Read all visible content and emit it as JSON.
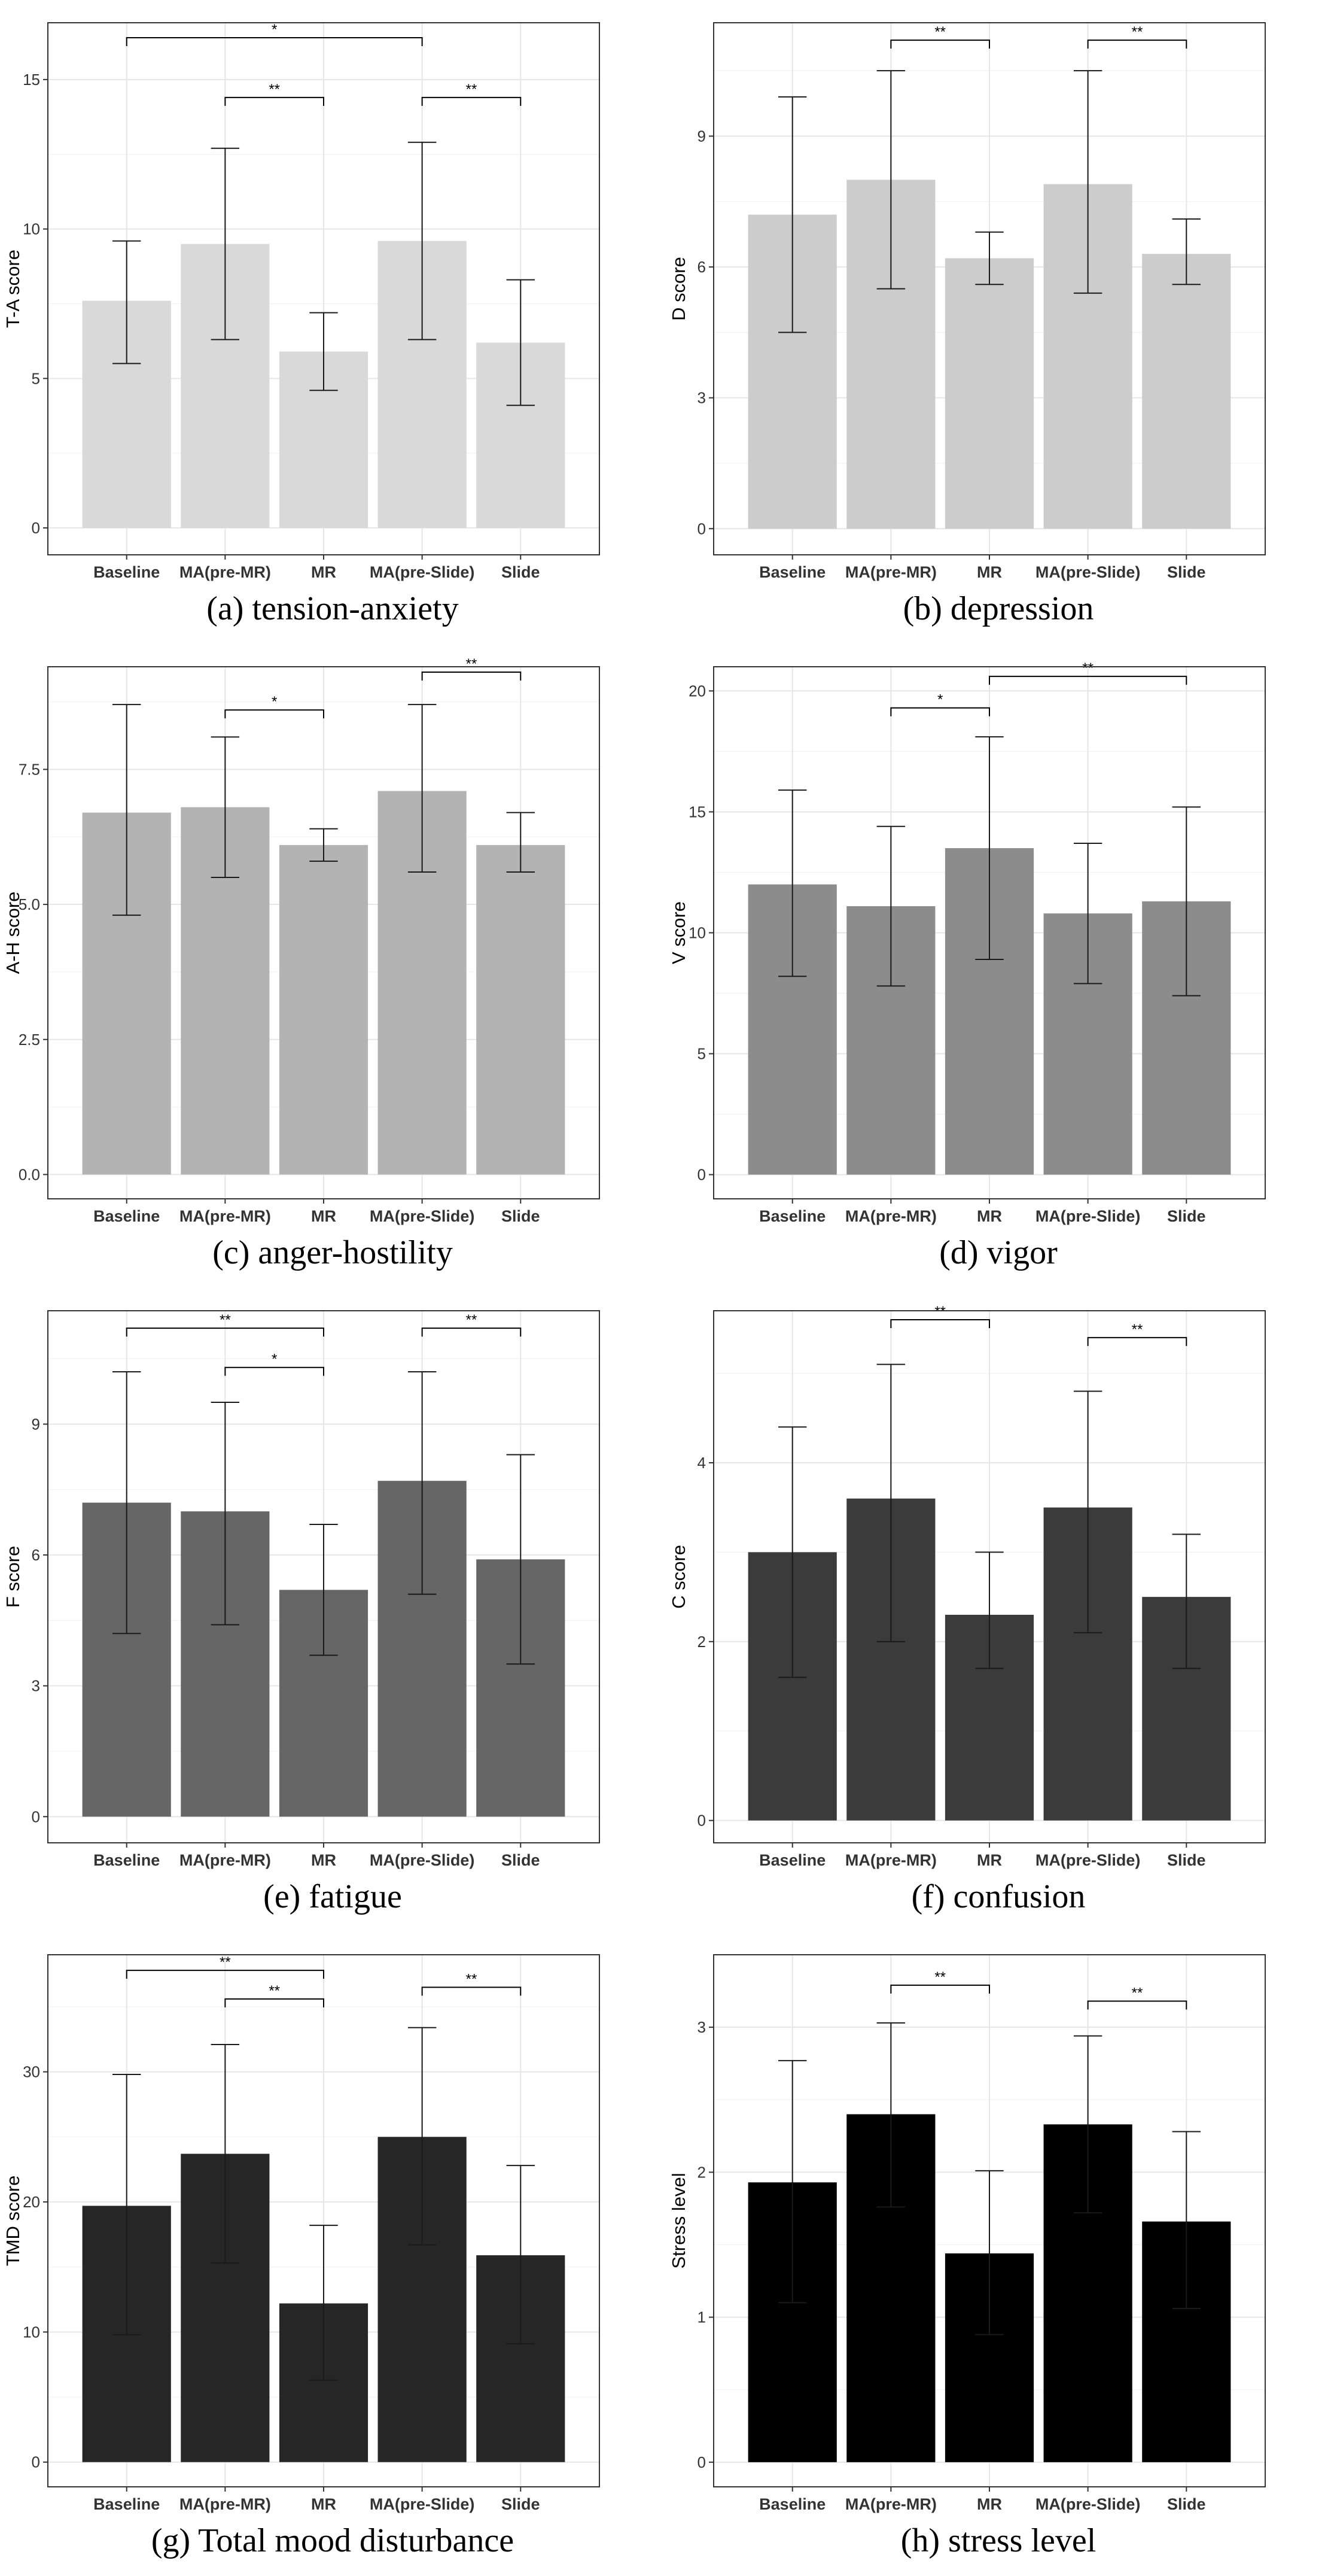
{
  "chart_data": [
    {
      "type": "bar",
      "caption": "(a) tension-anxiety",
      "ylabel": "T-A score",
      "ylim": [
        -0.9,
        16.9
      ],
      "yticks": [
        0,
        5,
        10,
        15
      ],
      "ytick_labels": [
        "0",
        "5",
        "10",
        "15"
      ],
      "bar_color": "#d9d9d9",
      "categories": [
        "Baseline",
        "MA(pre-MR)",
        "MR",
        "MA(pre-Slide)",
        "Slide"
      ],
      "values": [
        7.6,
        9.5,
        5.9,
        9.6,
        6.2
      ],
      "error_low": [
        5.5,
        6.3,
        4.6,
        6.3,
        4.1
      ],
      "error_high": [
        9.6,
        12.7,
        7.2,
        12.9,
        8.3
      ],
      "significance": [
        {
          "from": 0,
          "to": 3,
          "label": "*",
          "y": 16.4
        },
        {
          "from": 1,
          "to": 2,
          "label": "**",
          "y": 14.4
        },
        {
          "from": 3,
          "to": 4,
          "label": "**",
          "y": 14.4
        }
      ]
    },
    {
      "type": "bar",
      "caption": "(b) depression",
      "ylabel": "D score",
      "ylim": [
        -0.6,
        11.6
      ],
      "yticks": [
        0,
        3,
        6,
        9
      ],
      "ytick_labels": [
        "0",
        "3",
        "6",
        "9"
      ],
      "bar_color": "#cccccc",
      "categories": [
        "Baseline",
        "MA(pre-MR)",
        "MR",
        "MA(pre-Slide)",
        "Slide"
      ],
      "values": [
        7.2,
        8.0,
        6.2,
        7.9,
        6.3
      ],
      "error_low": [
        4.5,
        5.5,
        5.6,
        5.4,
        5.6
      ],
      "error_high": [
        9.9,
        10.5,
        6.8,
        10.5,
        7.1
      ],
      "significance": [
        {
          "from": 1,
          "to": 2,
          "label": "**",
          "y": 11.2
        },
        {
          "from": 3,
          "to": 4,
          "label": "**",
          "y": 11.2
        }
      ]
    },
    {
      "type": "bar",
      "caption": "(c) anger-hostility",
      "ylabel": "A-H score",
      "ylim": [
        -0.45,
        9.4
      ],
      "yticks": [
        0,
        2.5,
        5,
        7.5
      ],
      "ytick_labels": [
        "0.0",
        "2.5",
        "5.0",
        "7.5"
      ],
      "bar_color": "#b3b3b3",
      "categories": [
        "Baseline",
        "MA(pre-MR)",
        "MR",
        "MA(pre-Slide)",
        "Slide"
      ],
      "values": [
        6.7,
        6.8,
        6.1,
        7.1,
        6.1
      ],
      "error_low": [
        4.8,
        5.5,
        5.8,
        5.6,
        5.6
      ],
      "error_high": [
        8.7,
        8.1,
        6.4,
        8.7,
        6.7
      ],
      "significance": [
        {
          "from": 1,
          "to": 2,
          "label": "*",
          "y": 8.6
        },
        {
          "from": 3,
          "to": 4,
          "label": "**",
          "y": 9.3
        }
      ]
    },
    {
      "type": "bar",
      "caption": "(d) vigor",
      "ylabel": "V score",
      "ylim": [
        -1.0,
        21.0
      ],
      "yticks": [
        0,
        5,
        10,
        15,
        20
      ],
      "ytick_labels": [
        "0",
        "5",
        "10",
        "15",
        "20"
      ],
      "bar_color": "#8c8c8c",
      "categories": [
        "Baseline",
        "MA(pre-MR)",
        "MR",
        "MA(pre-Slide)",
        "Slide"
      ],
      "values": [
        12.0,
        11.1,
        13.5,
        10.8,
        11.3
      ],
      "error_low": [
        8.2,
        7.8,
        8.9,
        7.9,
        7.4
      ],
      "error_high": [
        15.9,
        14.4,
        18.1,
        13.7,
        15.2
      ],
      "significance": [
        {
          "from": 1,
          "to": 2,
          "label": "*",
          "y": 19.3
        },
        {
          "from": 2,
          "to": 4,
          "label": "**",
          "y": 20.6
        }
      ]
    },
    {
      "type": "bar",
      "caption": "(e) fatigue",
      "ylabel": "F score",
      "ylim": [
        -0.6,
        11.6
      ],
      "yticks": [
        0,
        3,
        6,
        9
      ],
      "ytick_labels": [
        "0",
        "3",
        "6",
        "9"
      ],
      "bar_color": "#666666",
      "categories": [
        "Baseline",
        "MA(pre-MR)",
        "MR",
        "MA(pre-Slide)",
        "Slide"
      ],
      "values": [
        7.2,
        7.0,
        5.2,
        7.7,
        5.9
      ],
      "error_low": [
        4.2,
        4.4,
        3.7,
        5.1,
        3.5
      ],
      "error_high": [
        10.2,
        9.5,
        6.7,
        10.2,
        8.3
      ],
      "significance": [
        {
          "from": 0,
          "to": 2,
          "label": "**",
          "y": 11.2
        },
        {
          "from": 1,
          "to": 2,
          "label": "*",
          "y": 10.3
        },
        {
          "from": 3,
          "to": 4,
          "label": "**",
          "y": 11.2
        }
      ]
    },
    {
      "type": "bar",
      "caption": "(f) confusion",
      "ylabel": "C score",
      "ylim": [
        -0.25,
        5.7
      ],
      "yticks": [
        0,
        2,
        4
      ],
      "ytick_labels": [
        "0",
        "2",
        "4"
      ],
      "bar_color": "#3b3b3b",
      "categories": [
        "Baseline",
        "MA(pre-MR)",
        "MR",
        "MA(pre-Slide)",
        "Slide"
      ],
      "values": [
        3.0,
        3.6,
        2.3,
        3.5,
        2.5
      ],
      "error_low": [
        1.6,
        2.0,
        1.7,
        2.1,
        1.7
      ],
      "error_high": [
        4.4,
        5.1,
        3.0,
        4.8,
        3.2
      ],
      "significance": [
        {
          "from": 1,
          "to": 2,
          "label": "**",
          "y": 5.6
        },
        {
          "from": 3,
          "to": 4,
          "label": "**",
          "y": 5.4
        }
      ]
    },
    {
      "type": "bar",
      "caption": "(g) Total mood disturbance",
      "ylabel": "TMD score",
      "ylim": [
        -1.9,
        39.0
      ],
      "yticks": [
        0,
        10,
        20,
        30
      ],
      "ytick_labels": [
        "0",
        "10",
        "20",
        "30"
      ],
      "bar_color": "#262626",
      "categories": [
        "Baseline",
        "MA(pre-MR)",
        "MR",
        "MA(pre-Slide)",
        "Slide"
      ],
      "values": [
        19.7,
        23.7,
        12.2,
        25.0,
        15.9
      ],
      "error_low": [
        9.8,
        15.3,
        6.3,
        16.7,
        9.1
      ],
      "error_high": [
        29.8,
        32.1,
        18.2,
        33.4,
        22.8
      ],
      "significance": [
        {
          "from": 0,
          "to": 2,
          "label": "**",
          "y": 37.8
        },
        {
          "from": 1,
          "to": 2,
          "label": "**",
          "y": 35.6
        },
        {
          "from": 3,
          "to": 4,
          "label": "**",
          "y": 36.5
        }
      ]
    },
    {
      "type": "bar",
      "caption": "(h) stress level",
      "ylabel": "Stress level",
      "ylim": [
        -0.17,
        3.5
      ],
      "yticks": [
        0,
        1,
        2,
        3
      ],
      "ytick_labels": [
        "0",
        "1",
        "2",
        "3"
      ],
      "bar_color": "#000000",
      "categories": [
        "Baseline",
        "MA(pre-MR)",
        "MR",
        "MA(pre-Slide)",
        "Slide"
      ],
      "values": [
        1.93,
        2.4,
        1.44,
        2.33,
        1.66
      ],
      "error_low": [
        1.1,
        1.76,
        0.88,
        1.72,
        1.06
      ],
      "error_high": [
        2.77,
        3.03,
        2.01,
        2.94,
        2.28
      ],
      "significance": [
        {
          "from": 1,
          "to": 2,
          "label": "**",
          "y": 3.29
        },
        {
          "from": 3,
          "to": 4,
          "label": "**",
          "y": 3.18
        }
      ]
    }
  ]
}
